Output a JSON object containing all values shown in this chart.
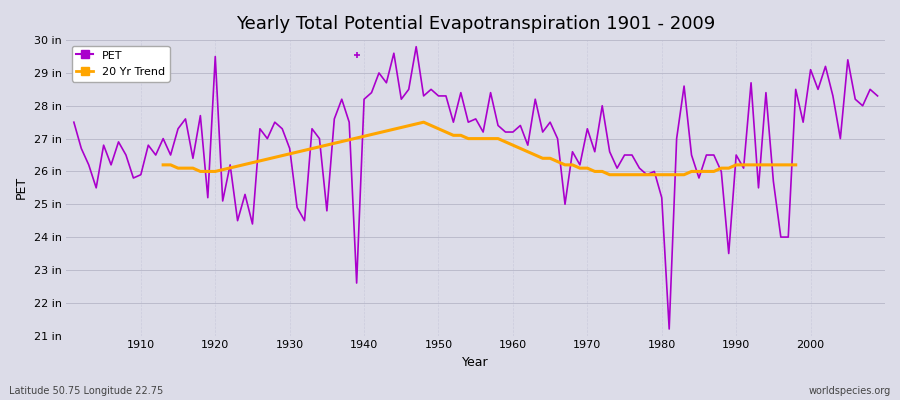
{
  "title": "Yearly Total Potential Evapotranspiration 1901 - 2009",
  "xlabel": "Year",
  "ylabel": "PET",
  "subtitle": "Latitude 50.75 Longitude 22.75",
  "watermark": "worldspecies.org",
  "pet_color": "#AA00CC",
  "trend_color": "#FFA500",
  "bg_color": "#DCDCE8",
  "ylim": [
    21,
    30
  ],
  "ytick_labels": [
    "21 in",
    "22 in",
    "23 in",
    "24 in",
    "25 in",
    "26 in",
    "27 in",
    "28 in",
    "29 in",
    "30 in"
  ],
  "ytick_values": [
    21,
    22,
    23,
    24,
    25,
    26,
    27,
    28,
    29,
    30
  ],
  "years": [
    1901,
    1902,
    1903,
    1904,
    1905,
    1906,
    1907,
    1908,
    1909,
    1910,
    1911,
    1912,
    1913,
    1914,
    1915,
    1916,
    1917,
    1918,
    1919,
    1920,
    1921,
    1922,
    1923,
    1924,
    1925,
    1926,
    1927,
    1928,
    1929,
    1930,
    1931,
    1932,
    1933,
    1934,
    1935,
    1936,
    1937,
    1938,
    1939,
    1940,
    1941,
    1942,
    1943,
    1944,
    1945,
    1946,
    1947,
    1948,
    1949,
    1950,
    1951,
    1952,
    1953,
    1954,
    1955,
    1956,
    1957,
    1958,
    1959,
    1960,
    1961,
    1962,
    1963,
    1964,
    1965,
    1966,
    1967,
    1968,
    1969,
    1970,
    1971,
    1972,
    1973,
    1974,
    1975,
    1976,
    1977,
    1978,
    1979,
    1980,
    1981,
    1982,
    1983,
    1984,
    1985,
    1986,
    1987,
    1988,
    1989,
    1990,
    1991,
    1992,
    1993,
    1994,
    1995,
    1996,
    1997,
    1998,
    1999,
    2000,
    2001,
    2002,
    2003,
    2004,
    2005,
    2006,
    2007,
    2008,
    2009
  ],
  "pet_values": [
    27.5,
    26.7,
    26.2,
    25.5,
    26.8,
    26.2,
    26.9,
    26.5,
    25.8,
    25.9,
    26.8,
    26.5,
    27.0,
    26.5,
    27.3,
    27.6,
    26.4,
    27.7,
    25.2,
    29.5,
    25.1,
    26.2,
    24.5,
    25.3,
    24.4,
    27.3,
    27.0,
    27.5,
    27.3,
    26.7,
    24.9,
    24.5,
    27.3,
    27.0,
    24.8,
    27.6,
    28.2,
    27.5,
    22.6,
    28.2,
    28.4,
    29.0,
    28.7,
    29.6,
    28.2,
    28.5,
    29.8,
    28.3,
    28.5,
    28.3,
    28.3,
    27.5,
    28.4,
    27.5,
    27.6,
    27.2,
    28.4,
    27.4,
    27.2,
    27.2,
    27.4,
    26.8,
    28.2,
    27.2,
    27.5,
    27.0,
    25.0,
    26.6,
    26.2,
    27.3,
    26.6,
    28.0,
    26.6,
    26.1,
    26.5,
    26.5,
    26.1,
    25.9,
    26.0,
    25.2,
    21.2,
    27.0,
    28.6,
    26.5,
    25.8,
    26.5,
    26.5,
    26.0,
    23.5,
    26.5,
    26.1,
    28.7,
    25.5,
    28.4,
    25.7,
    24.0,
    24.0,
    28.5,
    27.5,
    29.1,
    28.5,
    29.2,
    28.3,
    27.0,
    29.4,
    28.2,
    28.0,
    28.5,
    28.3
  ],
  "trend_years": [
    1913,
    1914,
    1915,
    1916,
    1917,
    1918,
    1919,
    1920,
    1948,
    1949,
    1950,
    1951,
    1952,
    1953,
    1954,
    1955,
    1956,
    1957,
    1958,
    1959,
    1960,
    1961,
    1962,
    1963,
    1964,
    1965,
    1966,
    1967,
    1968,
    1969,
    1970,
    1971,
    1972,
    1973,
    1974,
    1975,
    1976,
    1977,
    1978,
    1979,
    1980,
    1981,
    1982,
    1983,
    1984,
    1985,
    1986,
    1987,
    1988,
    1989,
    1990,
    1991,
    1992,
    1993,
    1994,
    1995,
    1996,
    1997,
    1998
  ],
  "trend_values": [
    26.2,
    26.2,
    26.1,
    26.1,
    26.1,
    26.0,
    26.0,
    26.0,
    27.5,
    27.4,
    27.3,
    27.2,
    27.1,
    27.1,
    27.0,
    27.0,
    27.0,
    27.0,
    27.0,
    26.9,
    26.8,
    26.7,
    26.6,
    26.5,
    26.4,
    26.4,
    26.3,
    26.2,
    26.2,
    26.1,
    26.1,
    26.0,
    26.0,
    25.9,
    25.9,
    25.9,
    25.9,
    25.9,
    25.9,
    25.9,
    25.9,
    25.9,
    25.9,
    25.9,
    26.0,
    26.0,
    26.0,
    26.0,
    26.1,
    26.1,
    26.2,
    26.2,
    26.2,
    26.2,
    26.2,
    26.2,
    26.2,
    26.2,
    26.2
  ],
  "outlier_year": 1939,
  "outlier_value": 29.55,
  "xtick_positions": [
    1910,
    1920,
    1930,
    1940,
    1950,
    1960,
    1970,
    1980,
    1990,
    2000
  ],
  "grid_color": "#BBBBCC",
  "vgrid_color": "#CCCCDD"
}
